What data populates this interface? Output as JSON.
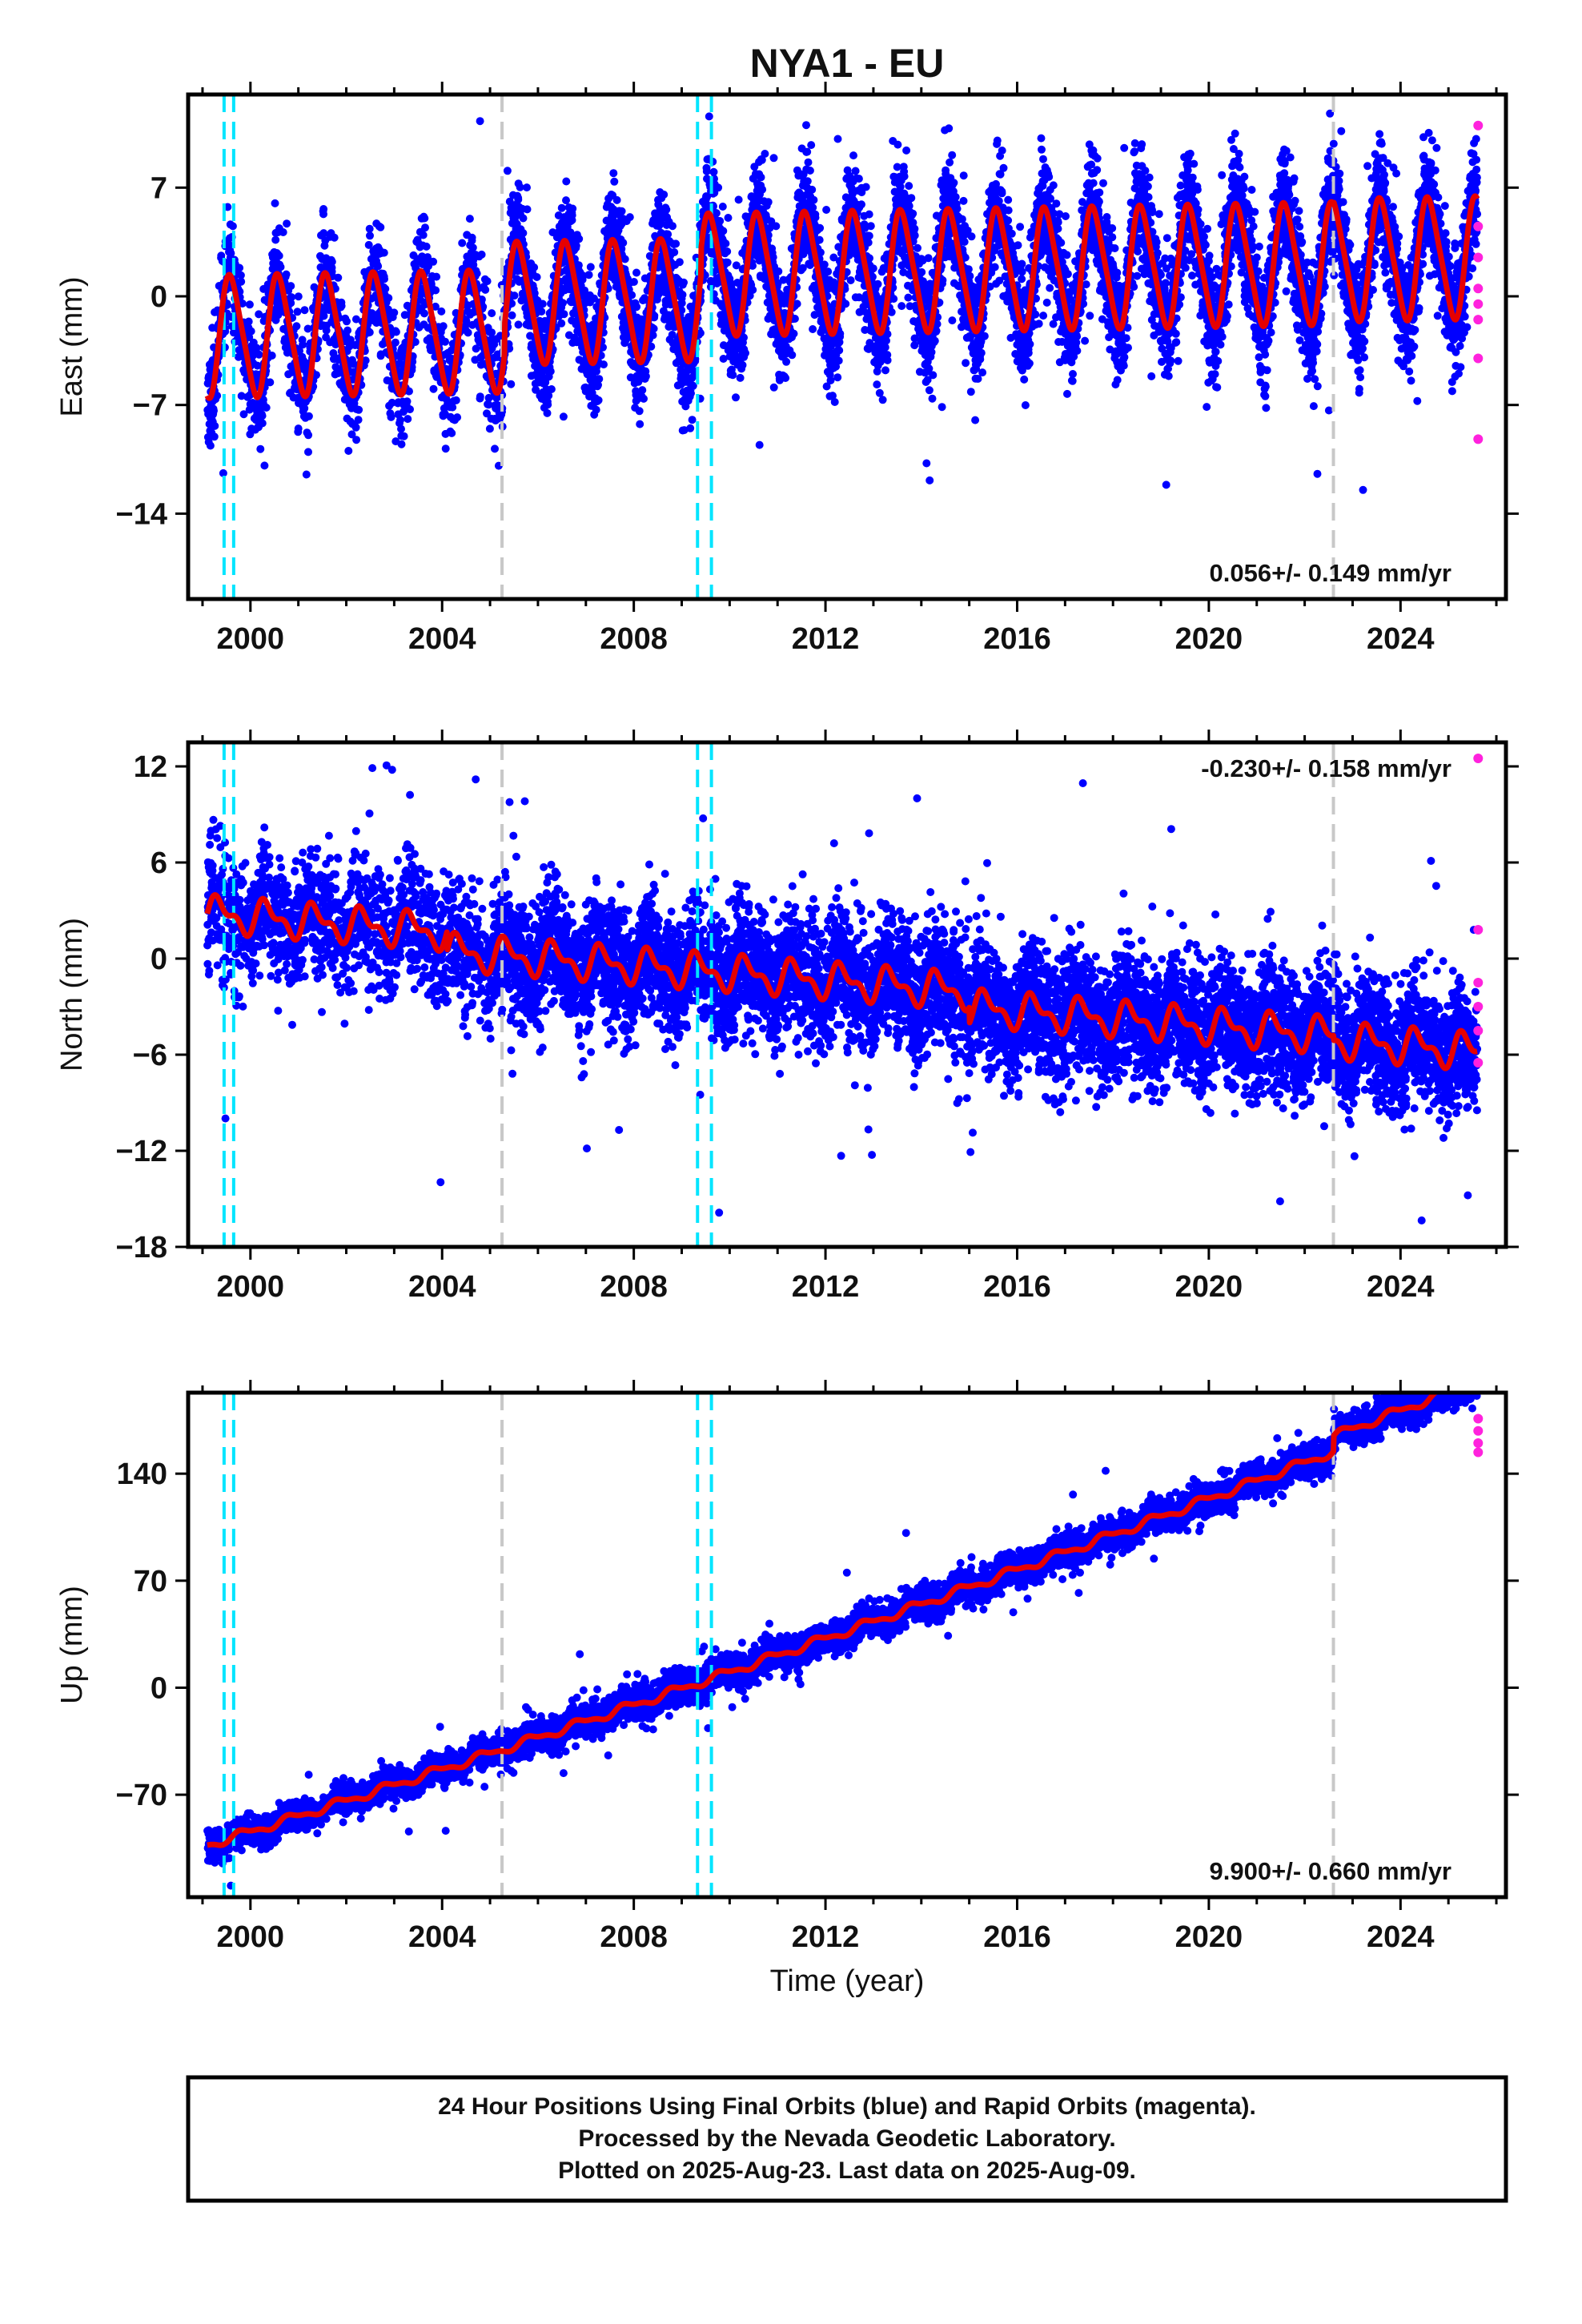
{
  "chart_data": [
    {
      "type": "scatter",
      "component": "east",
      "title": "NYA1 - EU",
      "ylabel": "East (mm)",
      "xlabel": "",
      "xlim": [
        1998.7,
        2026.2
      ],
      "ylim": [
        -19.5,
        13
      ],
      "xticks": [
        2000,
        2004,
        2008,
        2012,
        2016,
        2020,
        2024
      ],
      "yticks": [
        7,
        0,
        -7,
        -14
      ],
      "yticklabels": [
        "7",
        "0",
        "−7",
        "−14"
      ],
      "rate_text": "0.056+/- 0.149 mm/yr",
      "rate_position": "bottom-right",
      "grid": false,
      "series": [
        {
          "role": "final_orbits",
          "color": "#0000ff",
          "model": {
            "start": 1999.1,
            "end": 2025.6,
            "trend": 0.056,
            "offset": -2.6,
            "amplitude": 3.8,
            "amplitude_growth": 0.0,
            "noise": 1.8,
            "phase": 0.35,
            "semi_amplitude": 0.6,
            "seed": 11,
            "steps": [
              {
                "t": 2005.3,
                "dy": 1.8
              },
              {
                "t": 2009.4,
                "dy": 1.6
              },
              {
                "t": 2022.6,
                "dy": 0.2
              }
            ]
          }
        },
        {
          "role": "model_fit",
          "color": "#e60000"
        },
        {
          "role": "rapid_orbits",
          "color": "#ff22dd",
          "points": [
            [
              2025.62,
              11.0
            ],
            [
              2025.62,
              4.5
            ],
            [
              2025.62,
              2.5
            ],
            [
              2025.62,
              0.5
            ],
            [
              2025.62,
              -0.5
            ],
            [
              2025.62,
              -1.5
            ],
            [
              2025.62,
              -4.0
            ],
            [
              2025.62,
              -9.2
            ]
          ]
        }
      ]
    },
    {
      "type": "scatter",
      "component": "north",
      "title": "",
      "ylabel": "North (mm)",
      "xlabel": "",
      "xlim": [
        1998.7,
        2026.2
      ],
      "ylim": [
        -18,
        13.5
      ],
      "xticks": [
        2000,
        2004,
        2008,
        2012,
        2016,
        2020,
        2024
      ],
      "yticks": [
        12,
        6,
        0,
        -6,
        -12,
        -18
      ],
      "yticklabels": [
        "12",
        "6",
        "0",
        "−6",
        "−12",
        "−18"
      ],
      "rate_text": "-0.230+/- 0.158 mm/yr",
      "rate_position": "top-right",
      "grid": false,
      "series": [
        {
          "role": "final_orbits",
          "color": "#0000ff",
          "model": {
            "start": 1999.1,
            "end": 2025.6,
            "trend": -0.23,
            "offset": 2.8,
            "amplitude": 0.9,
            "amplitude_growth": 0.0,
            "noise": 1.9,
            "phase": 0.1,
            "semi_amplitude": 0.5,
            "seed": 23,
            "steps": [
              {
                "t": 2004.1,
                "dy": -1.2
              },
              {
                "t": 2015.0,
                "dy": -1.0
              },
              {
                "t": 2022.6,
                "dy": -0.3
              }
            ]
          }
        },
        {
          "role": "model_fit",
          "color": "#e60000"
        },
        {
          "role": "rapid_orbits",
          "color": "#ff22dd",
          "points": [
            [
              2025.62,
              12.5
            ],
            [
              2025.62,
              1.8
            ],
            [
              2025.62,
              -1.5
            ],
            [
              2025.62,
              -3.0
            ],
            [
              2025.62,
              -4.5
            ],
            [
              2025.62,
              -6.5
            ]
          ]
        }
      ]
    },
    {
      "type": "scatter",
      "component": "up",
      "title": "",
      "ylabel": "Up (mm)",
      "xlabel": "Time (year)",
      "xlim": [
        1998.7,
        2026.2
      ],
      "ylim": [
        -137,
        193
      ],
      "xticks": [
        2000,
        2004,
        2008,
        2012,
        2016,
        2020,
        2024
      ],
      "yticks": [
        140,
        70,
        0,
        -70
      ],
      "yticklabels": [
        "140",
        "70",
        "0",
        "−70"
      ],
      "rate_text": "9.900+/- 0.660 mm/yr",
      "rate_position": "bottom-right",
      "grid": false,
      "series": [
        {
          "role": "final_orbits",
          "color": "#0000ff",
          "model": {
            "start": 1999.1,
            "end": 2025.6,
            "trend": 9.9,
            "offset": -103,
            "amplitude": 2.5,
            "amplitude_growth": 0.0,
            "noise": 5.0,
            "phase": 0.6,
            "semi_amplitude": 1.0,
            "seed": 37,
            "quadratic": 0.045,
            "steps": [
              {
                "t": 2022.6,
                "dy": 10
              }
            ]
          }
        },
        {
          "role": "model_fit",
          "color": "#e60000"
        },
        {
          "role": "rapid_orbits",
          "color": "#ff22dd",
          "points": [
            [
              2025.62,
              176
            ],
            [
              2025.62,
              168
            ],
            [
              2025.62,
              160
            ],
            [
              2025.62,
              154
            ]
          ]
        }
      ]
    }
  ],
  "vertical_markers": {
    "cyan": [
      1999.45,
      1999.65,
      2009.33,
      2009.62
    ],
    "gray": [
      2005.25,
      2022.6
    ],
    "cyan_color": "#00e5ff",
    "gray_color": "#c8c8c8"
  },
  "footer": {
    "line1": "24 Hour Positions Using Final Orbits (blue) and Rapid Orbits (magenta).",
    "line2": "Processed by the Nevada Geodetic Laboratory.",
    "line3": "Plotted on 2025-Aug-23. Last data on 2025-Aug-09."
  }
}
